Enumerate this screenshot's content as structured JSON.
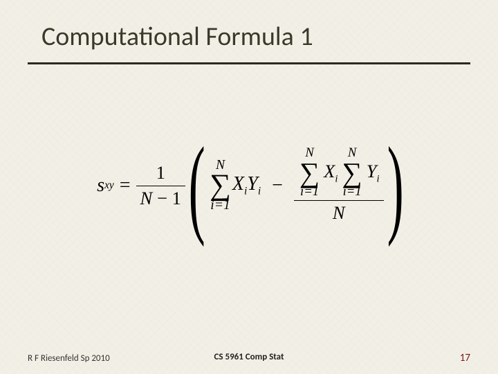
{
  "slide": {
    "title": "Computational Formula 1",
    "background_color": "#f2f0e6",
    "rule_color": "#2a2a1f",
    "title_color": "#3a3a2a",
    "title_fontsize": 38
  },
  "formula": {
    "lhs_var": "s",
    "lhs_sub": "xy",
    "equals": "=",
    "coef_num": "1",
    "coef_den_left": "N",
    "coef_den_minus": "−",
    "coef_den_right": "1",
    "sum1_upper": "N",
    "sum1_lower": "i=1",
    "sum1_term_a": "X",
    "sum1_term_a_sub": "i",
    "sum1_term_b": "Y",
    "sum1_term_b_sub": "i",
    "minus": "−",
    "sum2_upper": "N",
    "sum2_lower": "i=1",
    "sum2_term": "X",
    "sum2_term_sub": "i",
    "sum3_upper": "N",
    "sum3_lower": "i=1",
    "sum3_term": "Y",
    "sum3_term_sub": "i",
    "denom2": "N",
    "sigma": "∑",
    "lparen": "(",
    "rparen": ")"
  },
  "footer": {
    "left": "R F Riesenfeld Sp 2010",
    "center": "CS 5961 Comp Stat",
    "page": "17",
    "page_color": "#7a1518"
  }
}
